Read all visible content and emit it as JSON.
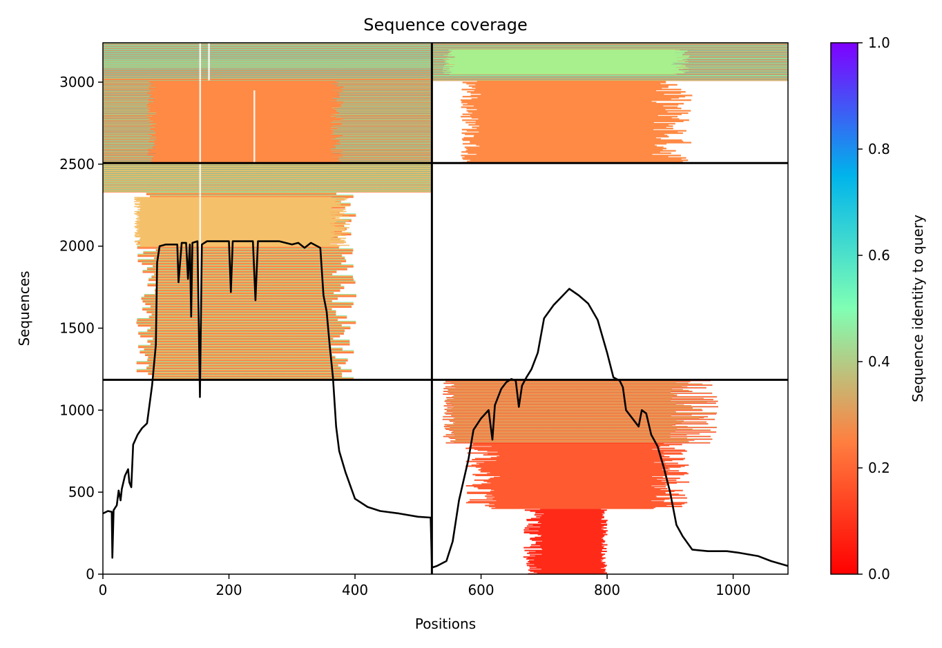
{
  "chart_data": {
    "type": "heatmap",
    "title": "Sequence coverage",
    "xlabel": "Positions",
    "ylabel": "Sequences",
    "xlim": [
      0,
      1087
    ],
    "ylim": [
      0,
      3240
    ],
    "x_ticks": [
      0,
      200,
      400,
      600,
      800,
      1000
    ],
    "y_ticks": [
      0,
      500,
      1000,
      1500,
      2000,
      2500,
      3000
    ],
    "chain_boundary_x": 522,
    "group_boundaries_y": [
      1185,
      2507
    ],
    "colorbar": {
      "label": "Sequence identity to query",
      "range": [
        0.0,
        1.0
      ],
      "ticks": [
        0.0,
        0.2,
        0.4,
        0.6,
        0.8,
        1.0
      ],
      "colormap": "rainbow_r",
      "stops": [
        "#ff0000",
        "#ff7f40",
        "#80ffb4",
        "#00b4eb",
        "#7f00ff"
      ]
    },
    "line_color": "#000000",
    "coverage_series": [
      {
        "x": 0,
        "y": 370
      },
      {
        "x": 8,
        "y": 385
      },
      {
        "x": 14,
        "y": 380
      },
      {
        "x": 15,
        "y": 100
      },
      {
        "x": 17,
        "y": 390
      },
      {
        "x": 22,
        "y": 420
      },
      {
        "x": 25,
        "y": 510
      },
      {
        "x": 28,
        "y": 450
      },
      {
        "x": 30,
        "y": 520
      },
      {
        "x": 35,
        "y": 600
      },
      {
        "x": 40,
        "y": 640
      },
      {
        "x": 42,
        "y": 560
      },
      {
        "x": 45,
        "y": 530
      },
      {
        "x": 48,
        "y": 790
      },
      {
        "x": 55,
        "y": 850
      },
      {
        "x": 62,
        "y": 890
      },
      {
        "x": 70,
        "y": 920
      },
      {
        "x": 78,
        "y": 1150
      },
      {
        "x": 84,
        "y": 1400
      },
      {
        "x": 86,
        "y": 1900
      },
      {
        "x": 90,
        "y": 2000
      },
      {
        "x": 100,
        "y": 2010
      },
      {
        "x": 118,
        "y": 2010
      },
      {
        "x": 120,
        "y": 1780
      },
      {
        "x": 125,
        "y": 2020
      },
      {
        "x": 132,
        "y": 2020
      },
      {
        "x": 135,
        "y": 1800
      },
      {
        "x": 138,
        "y": 2010
      },
      {
        "x": 140,
        "y": 1570
      },
      {
        "x": 142,
        "y": 2020
      },
      {
        "x": 150,
        "y": 2030
      },
      {
        "x": 154,
        "y": 1080
      },
      {
        "x": 157,
        "y": 2010
      },
      {
        "x": 165,
        "y": 2030
      },
      {
        "x": 200,
        "y": 2030
      },
      {
        "x": 203,
        "y": 1720
      },
      {
        "x": 206,
        "y": 2030
      },
      {
        "x": 238,
        "y": 2030
      },
      {
        "x": 242,
        "y": 1670
      },
      {
        "x": 246,
        "y": 2030
      },
      {
        "x": 280,
        "y": 2030
      },
      {
        "x": 300,
        "y": 2010
      },
      {
        "x": 310,
        "y": 2020
      },
      {
        "x": 320,
        "y": 1990
      },
      {
        "x": 330,
        "y": 2020
      },
      {
        "x": 345,
        "y": 1990
      },
      {
        "x": 350,
        "y": 1700
      },
      {
        "x": 355,
        "y": 1600
      },
      {
        "x": 360,
        "y": 1390
      },
      {
        "x": 365,
        "y": 1200
      },
      {
        "x": 370,
        "y": 900
      },
      {
        "x": 375,
        "y": 750
      },
      {
        "x": 385,
        "y": 620
      },
      {
        "x": 400,
        "y": 460
      },
      {
        "x": 420,
        "y": 410
      },
      {
        "x": 440,
        "y": 385
      },
      {
        "x": 470,
        "y": 370
      },
      {
        "x": 500,
        "y": 350
      },
      {
        "x": 520,
        "y": 345
      },
      {
        "x": 522,
        "y": 40
      },
      {
        "x": 530,
        "y": 50
      },
      {
        "x": 545,
        "y": 80
      },
      {
        "x": 555,
        "y": 200
      },
      {
        "x": 565,
        "y": 450
      },
      {
        "x": 580,
        "y": 700
      },
      {
        "x": 588,
        "y": 880
      },
      {
        "x": 600,
        "y": 950
      },
      {
        "x": 612,
        "y": 1000
      },
      {
        "x": 618,
        "y": 820
      },
      {
        "x": 622,
        "y": 1030
      },
      {
        "x": 632,
        "y": 1130
      },
      {
        "x": 640,
        "y": 1170
      },
      {
        "x": 648,
        "y": 1190
      },
      {
        "x": 655,
        "y": 1180
      },
      {
        "x": 660,
        "y": 1020
      },
      {
        "x": 665,
        "y": 1150
      },
      {
        "x": 672,
        "y": 1200
      },
      {
        "x": 680,
        "y": 1250
      },
      {
        "x": 690,
        "y": 1350
      },
      {
        "x": 700,
        "y": 1560
      },
      {
        "x": 715,
        "y": 1640
      },
      {
        "x": 730,
        "y": 1700
      },
      {
        "x": 740,
        "y": 1740
      },
      {
        "x": 755,
        "y": 1700
      },
      {
        "x": 770,
        "y": 1650
      },
      {
        "x": 785,
        "y": 1550
      },
      {
        "x": 800,
        "y": 1350
      },
      {
        "x": 810,
        "y": 1200
      },
      {
        "x": 820,
        "y": 1180
      },
      {
        "x": 825,
        "y": 1140
      },
      {
        "x": 830,
        "y": 1000
      },
      {
        "x": 840,
        "y": 950
      },
      {
        "x": 850,
        "y": 900
      },
      {
        "x": 855,
        "y": 1000
      },
      {
        "x": 862,
        "y": 980
      },
      {
        "x": 870,
        "y": 850
      },
      {
        "x": 880,
        "y": 780
      },
      {
        "x": 890,
        "y": 650
      },
      {
        "x": 900,
        "y": 500
      },
      {
        "x": 910,
        "y": 300
      },
      {
        "x": 920,
        "y": 230
      },
      {
        "x": 935,
        "y": 150
      },
      {
        "x": 960,
        "y": 140
      },
      {
        "x": 990,
        "y": 140
      },
      {
        "x": 1010,
        "y": 130
      },
      {
        "x": 1040,
        "y": 110
      },
      {
        "x": 1060,
        "y": 80
      },
      {
        "x": 1087,
        "y": 50
      }
    ]
  }
}
